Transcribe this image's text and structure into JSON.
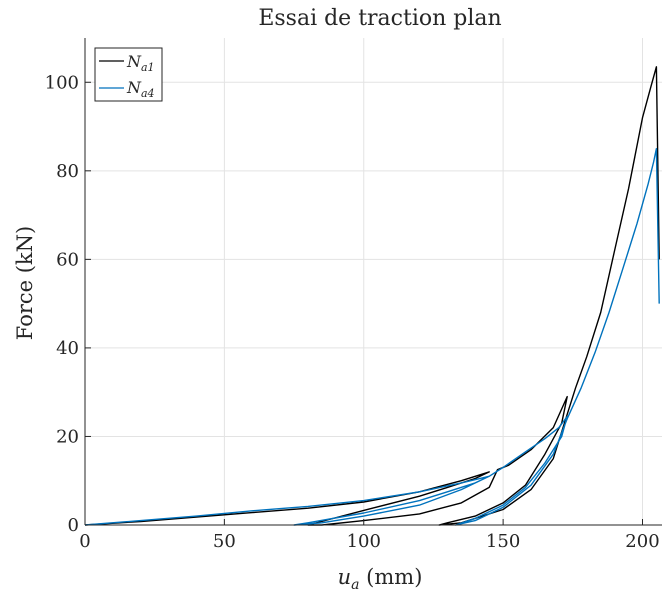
{
  "chart_data": {
    "type": "line",
    "title": "Essai de traction plan",
    "xlabel_main": "u",
    "xlabel_sub": "a",
    "xlabel_unit": " (mm)",
    "ylabel": "Force (kN)",
    "xlim": [
      0,
      207
    ],
    "ylim": [
      0,
      110
    ],
    "xticks": [
      0,
      50,
      100,
      150,
      200
    ],
    "yticks": [
      0,
      20,
      40,
      60,
      80,
      100
    ],
    "grid": true,
    "legend_position": "top-left",
    "series": [
      {
        "name_main": "N",
        "name_sub": "a1",
        "color": "#000000",
        "x": [
          0,
          20,
          40,
          60,
          80,
          100,
          120,
          135,
          145,
          140,
          130,
          120,
          100,
          80,
          85,
          100,
          120,
          135,
          145,
          148,
          152,
          160,
          168,
          173,
          171,
          165,
          158,
          150,
          140,
          130,
          127,
          135,
          150,
          160,
          168,
          173,
          176,
          180,
          185,
          190,
          195,
          200,
          203,
          205,
          206
        ],
        "y": [
          0,
          0.8,
          1.8,
          2.8,
          3.8,
          5.2,
          7.5,
          10.0,
          12.0,
          10.5,
          8.5,
          6.5,
          3.3,
          0,
          0,
          1.0,
          2.5,
          5.0,
          8.5,
          12.5,
          13.5,
          17.0,
          22.0,
          29.0,
          23.0,
          16.0,
          9.0,
          5.0,
          2.0,
          0.5,
          0,
          0.5,
          3.5,
          8.0,
          15.0,
          25.0,
          31.0,
          38.0,
          48.0,
          62.0,
          76.0,
          92.0,
          99.0,
          103.5,
          60.0
        ]
      },
      {
        "name_main": "N",
        "name_sub": "a4",
        "color": "#0072bd",
        "x": [
          0,
          20,
          40,
          60,
          80,
          100,
          120,
          135,
          145,
          140,
          130,
          120,
          100,
          80,
          75,
          85,
          100,
          120,
          135,
          145,
          150,
          158,
          165,
          170,
          173,
          171,
          165,
          158,
          150,
          140,
          133,
          140,
          150,
          160,
          168,
          173,
          178,
          183,
          188,
          193,
          198,
          202,
          204,
          205,
          206
        ],
        "y": [
          0,
          1.0,
          2.0,
          3.2,
          4.2,
          5.5,
          7.5,
          9.5,
          11.0,
          9.5,
          7.5,
          5.5,
          2.7,
          0.5,
          0,
          0.5,
          2.0,
          4.5,
          8.0,
          11.0,
          13.0,
          16.5,
          19.5,
          22.0,
          24.5,
          20.0,
          14.0,
          8.5,
          4.5,
          1.5,
          0,
          1.0,
          4.0,
          9.0,
          16.0,
          24.0,
          31.0,
          39.0,
          48.0,
          58.0,
          68.0,
          77.0,
          82.0,
          85.0,
          50.0
        ]
      }
    ]
  }
}
